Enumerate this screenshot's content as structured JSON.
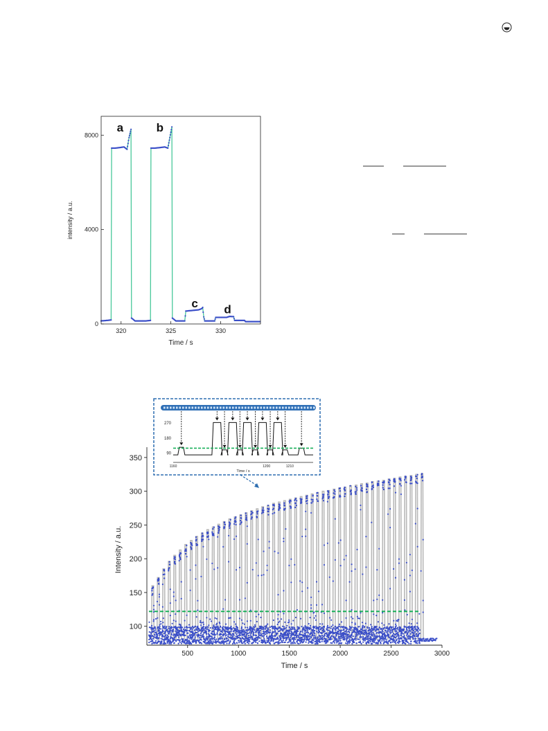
{
  "colors": {
    "blue": "#3a4ec8",
    "green": "#48c89a",
    "gray": "#b8b8b8",
    "threshold": "#19b05a",
    "inset_border": "#2d6db0",
    "strip": "#2f6fb6"
  },
  "icons": [
    "circled-symbol-icon"
  ],
  "chart_data": [
    {
      "type": "line",
      "xlabel": "Time / s",
      "ylabel": "intensity / a.u.",
      "xlim": [
        318,
        334
      ],
      "ylim": [
        0,
        8800
      ],
      "xticks": [
        320,
        325,
        330
      ],
      "yticks": [
        0,
        4000,
        8000
      ],
      "annotations": [
        {
          "text": "a",
          "x": 319.9,
          "y": 8150
        },
        {
          "text": "b",
          "x": 323.9,
          "y": 8150
        },
        {
          "text": "c",
          "x": 327.4,
          "y": 700
        },
        {
          "text": "d",
          "x": 330.7,
          "y": 450
        }
      ],
      "series": [
        {
          "x": [
            318.0,
            318.6,
            319.0,
            319.05,
            319.4,
            320.3,
            320.6,
            320.8,
            321.0,
            321.05,
            321.4,
            322.5,
            322.95,
            323.0,
            323.4,
            324.4,
            324.7,
            324.9,
            325.1,
            325.15,
            325.5,
            326.4,
            326.5,
            326.6,
            327.8,
            328.1,
            328.2,
            328.3,
            328.4,
            329.4,
            329.5,
            330.6,
            330.9,
            331.3,
            331.4,
            332.4,
            332.5,
            334.0
          ],
          "y": [
            130,
            150,
            170,
            7450,
            7450,
            7500,
            7400,
            7900,
            8250,
            250,
            130,
            130,
            150,
            7450,
            7450,
            7500,
            7450,
            7900,
            8350,
            250,
            130,
            130,
            550,
            550,
            600,
            650,
            700,
            300,
            130,
            130,
            280,
            280,
            320,
            310,
            150,
            150,
            100,
            100
          ]
        }
      ]
    },
    {
      "type": "scatter",
      "xlabel": "Time / s",
      "ylabel": "Intensity / a.u.",
      "xlim": [
        100,
        3000
      ],
      "ylim": [
        72,
        355
      ],
      "xticks": [
        500,
        1000,
        1500,
        2000,
        2500,
        3000
      ],
      "yticks": [
        100,
        150,
        200,
        250,
        300,
        350
      ],
      "threshold": 122,
      "threshold_xrange": [
        120,
        2770
      ],
      "series": [
        {
          "peak_start_x": 150,
          "peak_spacing": 54,
          "peak_count": 50,
          "peak_tops": [
            160,
            172,
            185,
            196,
            205,
            213,
            221,
            227,
            233,
            238,
            243,
            247,
            251,
            255,
            259,
            262,
            265,
            268,
            271,
            274,
            277,
            279,
            282,
            284,
            286,
            288,
            290,
            292,
            294,
            296,
            298,
            300,
            301,
            303,
            305,
            306,
            308,
            309,
            311,
            312,
            314,
            315,
            316,
            318,
            319,
            321,
            322,
            323,
            325,
            326
          ],
          "baseline": 80,
          "end_x": 2780,
          "tail_end_x": 2950,
          "tail_y": 78
        }
      ],
      "inset": {
        "xlabel": "Time / s",
        "xlim": [
          1160,
          1220
        ],
        "ylim": [
          60,
          290
        ],
        "xticks": [
          1160,
          1200,
          1210
        ],
        "yticks": [
          90,
          180,
          270
        ],
        "threshold": 120,
        "peaks": [
          {
            "x": 1163.5,
            "y": 125
          },
          {
            "x": 1178.8,
            "y": 272
          },
          {
            "x": 1182.0,
            "y": 110
          },
          {
            "x": 1185.5,
            "y": 272
          },
          {
            "x": 1188.6,
            "y": 110
          },
          {
            "x": 1191.8,
            "y": 272
          },
          {
            "x": 1195.2,
            "y": 110
          },
          {
            "x": 1198.3,
            "y": 272
          },
          {
            "x": 1201.6,
            "y": 110
          },
          {
            "x": 1204.8,
            "y": 272
          },
          {
            "x": 1208.0,
            "y": 110
          },
          {
            "x": 1215.0,
            "y": 120
          }
        ]
      }
    }
  ]
}
